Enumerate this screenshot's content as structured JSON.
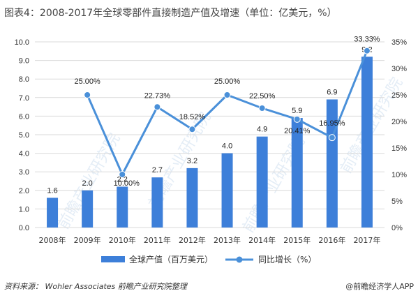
{
  "title": "图表4：2008-2017年全球零部件直接制造产值及增速（单位：亿美元，%）",
  "footer": {
    "source": "资料来源：  Wohler Associates 前瞻产业研究院整理",
    "brand": "@前瞻经济学人APP"
  },
  "colors": {
    "bar": "#3d7fd9",
    "line": "#4a90d9",
    "grid": "#d9d9d9",
    "watermark": "#cfdff0"
  },
  "chart_data": {
    "type": "bar",
    "categories": [
      "2008年",
      "2009年",
      "2010年",
      "2011年",
      "2012年",
      "2013年",
      "2014年",
      "2015年",
      "2016年",
      "2017年"
    ],
    "series": [
      {
        "name": "全球产值（百万美元）",
        "type": "bar",
        "axis": "left",
        "values": [
          1.6,
          2.0,
          2.2,
          2.7,
          3.2,
          4.0,
          4.9,
          5.9,
          6.9,
          9.2
        ],
        "labels": [
          "1.6",
          "2.0",
          "2.2",
          "2.7",
          "3.2",
          "4.0",
          "4.9",
          "5.9",
          "6.9",
          "9.2"
        ]
      },
      {
        "name": "同比增长（%）",
        "type": "line",
        "axis": "right",
        "values": [
          null,
          25.0,
          10.0,
          22.73,
          18.52,
          25.0,
          22.5,
          20.41,
          16.95,
          33.33
        ],
        "labels": [
          "",
          "25.00%",
          "10.00%",
          "22.73%",
          "18.52%",
          "25.00%",
          "22.50%",
          "20.41%",
          "16.95%",
          "33.33%"
        ]
      }
    ],
    "y_left": {
      "min": 0,
      "max": 10,
      "ticks": [
        "0.0",
        "1.0",
        "2.0",
        "3.0",
        "4.0",
        "5.0",
        "6.0",
        "7.0",
        "8.0",
        "9.0",
        "10.0"
      ]
    },
    "y_right": {
      "min": 0,
      "max": 35,
      "ticks": [
        "0%",
        "5%",
        "10%",
        "15%",
        "20%",
        "25%",
        "30%",
        "35%"
      ]
    },
    "grid": true,
    "legend": "bottom",
    "watermark": "前瞻产业研究院"
  }
}
